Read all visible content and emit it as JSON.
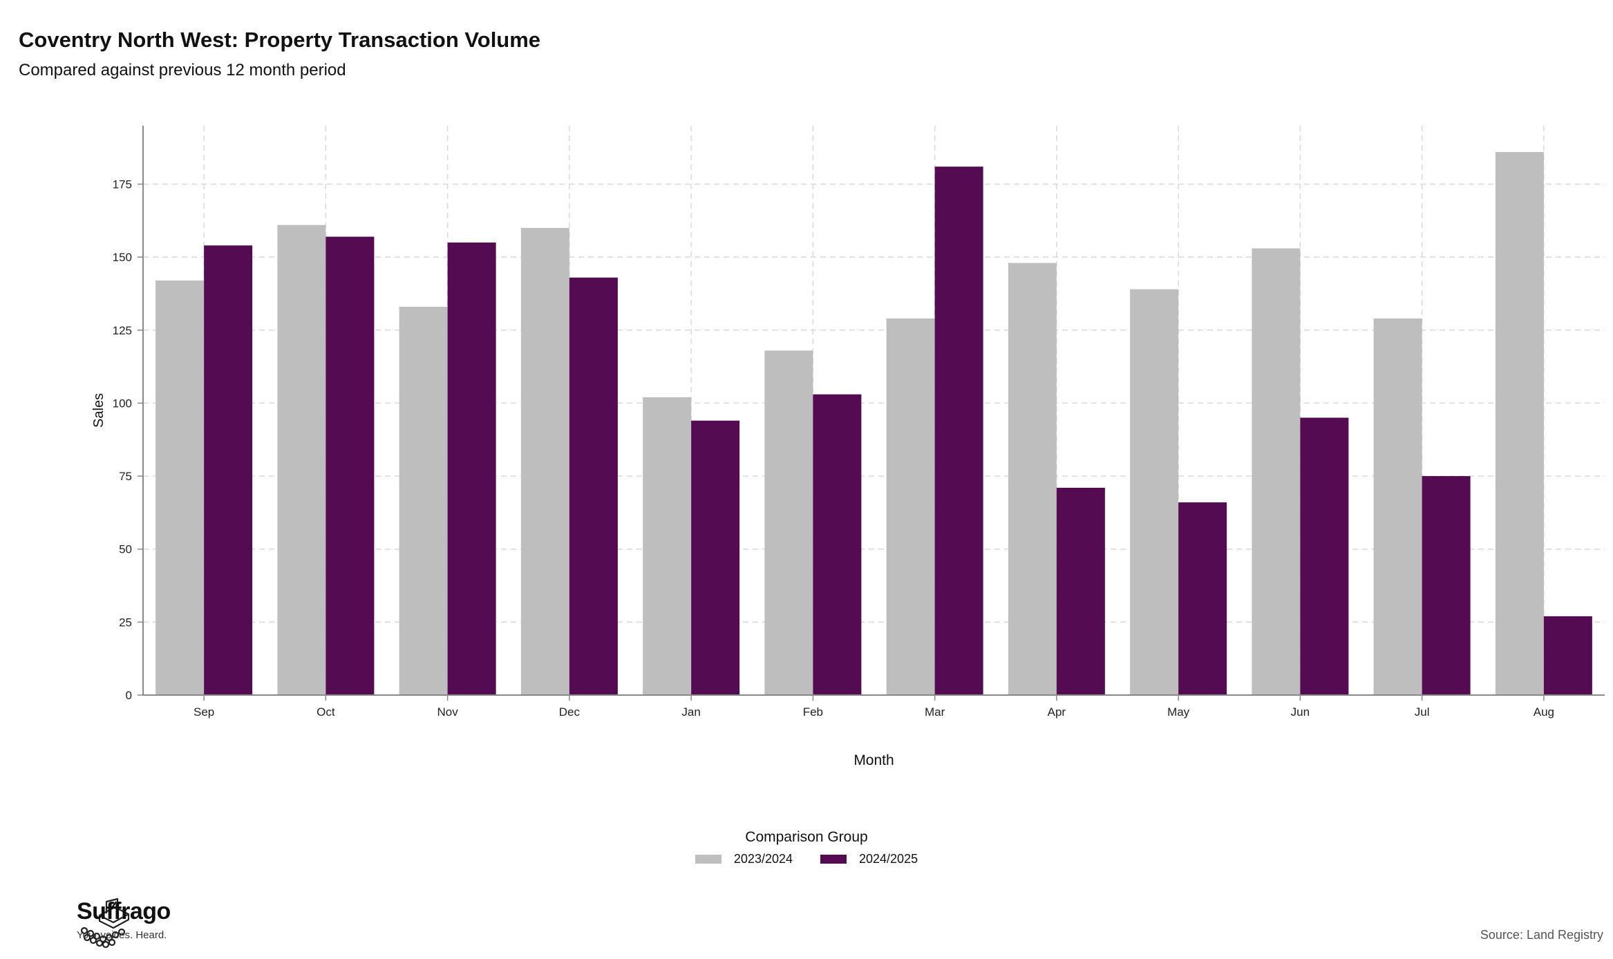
{
  "chart_data": {
    "type": "bar",
    "title": "Coventry North West: Property Transaction Volume",
    "subtitle": "Compared against previous 12 month period",
    "xlabel": "Month",
    "ylabel": "Sales",
    "ylim": [
      0,
      195
    ],
    "yticks": [
      0,
      25,
      50,
      75,
      100,
      125,
      150,
      175
    ],
    "categories": [
      "Sep",
      "Oct",
      "Nov",
      "Dec",
      "Jan",
      "Feb",
      "Mar",
      "Apr",
      "May",
      "Jun",
      "Jul",
      "Aug"
    ],
    "series": [
      {
        "name": "2023/2024",
        "color": "#bebebe",
        "values": [
          142,
          161,
          133,
          160,
          102,
          118,
          129,
          148,
          139,
          153,
          129,
          186
        ]
      },
      {
        "name": "2024/2025",
        "color": "#540b52",
        "values": [
          154,
          157,
          155,
          143,
          94,
          103,
          181,
          71,
          66,
          95,
          75,
          27
        ]
      }
    ],
    "grid": true,
    "legend_title": "Comparison Group",
    "legend_position": "bottom"
  },
  "branding": {
    "name": "Suffrago",
    "tagline": "Your voices. Heard."
  },
  "source": "Source: Land Registry"
}
